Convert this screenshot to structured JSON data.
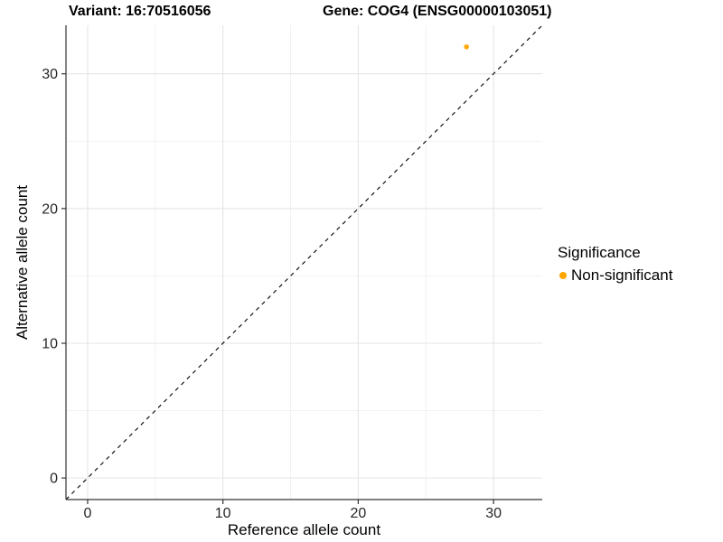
{
  "chart_data": {
    "type": "scatter",
    "title_left": "Variant: 16:70516056",
    "title_right": "Gene: COG4 (ENSG00000103051)",
    "xlabel": "Reference allele count",
    "ylabel": "Alternative allele count",
    "xlim": [
      0,
      32
    ],
    "ylim": [
      0,
      32
    ],
    "expansion_frac": 0.05,
    "x_ticks": [
      0,
      10,
      20,
      30
    ],
    "y_ticks": [
      0,
      10,
      20,
      30
    ],
    "x_minor_ticks": [
      5,
      15,
      25
    ],
    "y_minor_ticks": [
      5,
      15,
      25
    ],
    "grid": "major+minor",
    "identity_line": {
      "slope": 1,
      "intercept": 0,
      "style": "dashed",
      "color": "#000000"
    },
    "series": [
      {
        "name": "Non-significant",
        "color": "#FFA500",
        "points": [
          {
            "x": 28,
            "y": 32
          }
        ]
      }
    ],
    "legend": {
      "title": "Significance",
      "position": "right",
      "items": [
        {
          "label": "Non-significant",
          "color": "#FFA500"
        }
      ]
    },
    "colors": {
      "background": "#FFFFFF",
      "grid_major": "#E5E5E5",
      "grid_minor": "#F0F0F0",
      "axis_line": "#333333",
      "tick_mark": "#333333",
      "tick_label": "#262626",
      "point": "#FFA500"
    }
  }
}
